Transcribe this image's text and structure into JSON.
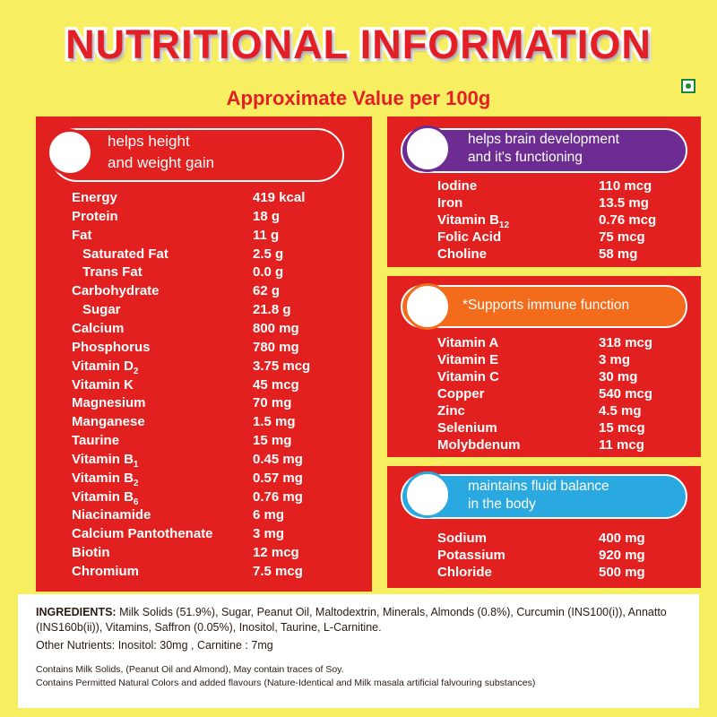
{
  "header": {
    "title": "NUTRITIONAL INFORMATION",
    "subtitle": "Approximate Value per 100g"
  },
  "panels": [
    {
      "heading": [
        "helps height",
        "and weight gain"
      ],
      "rows": [
        {
          "name": "Energy",
          "value": "419 kcal"
        },
        {
          "name": "Protein",
          "value": "18 g"
        },
        {
          "name": "Fat",
          "value": "11 g"
        },
        {
          "name": "Saturated Fat",
          "value": "2.5 g",
          "indent": true
        },
        {
          "name": "Trans Fat",
          "value": "0.0 g",
          "indent": true
        },
        {
          "name": "Carbohydrate",
          "value": "62 g"
        },
        {
          "name": "Sugar",
          "value": "21.8 g",
          "indent": true
        },
        {
          "name": "Calcium",
          "value": "800 mg"
        },
        {
          "name": "Phosphorus",
          "value": "780 mg"
        },
        {
          "name": "Vitamin D",
          "sub": "2",
          "value": "3.75 mcg"
        },
        {
          "name": "Vitamin K",
          "value": "45 mcg"
        },
        {
          "name": "Magnesium",
          "value": "70 mg"
        },
        {
          "name": "Manganese",
          "value": "1.5 mg"
        },
        {
          "name": "Taurine",
          "value": "15 mg"
        },
        {
          "name": "Vitamin B",
          "sub": "1",
          "value": "0.45 mg"
        },
        {
          "name": "Vitamin B",
          "sub": "2",
          "value": "0.57 mg"
        },
        {
          "name": "Vitamin B",
          "sub": "6",
          "value": "0.76 mg"
        },
        {
          "name": "Niacinamide",
          "value": "6 mg"
        },
        {
          "name": "Calcium Pantothenate",
          "value": "3 mg"
        },
        {
          "name": "Biotin",
          "value": "12 mcg"
        },
        {
          "name": "Chromium",
          "value": "7.5 mcg"
        }
      ]
    },
    {
      "heading": [
        "helps brain development",
        "and it's functioning"
      ],
      "rows": [
        {
          "name": "Iodine",
          "value": "110 mcg"
        },
        {
          "name": "Iron",
          "value": "13.5 mg"
        },
        {
          "name": "Vitamin B",
          "sub": "12",
          "value": "0.76 mcg"
        },
        {
          "name": "Folic Acid",
          "value": "75 mcg"
        },
        {
          "name": "Choline",
          "value": "58 mg"
        }
      ]
    },
    {
      "heading": [
        "*Supports immune function"
      ],
      "rows": [
        {
          "name": "Vitamin A",
          "value": "318 mcg"
        },
        {
          "name": "Vitamin E",
          "value": "3 mg"
        },
        {
          "name": "Vitamin C",
          "value": "30 mg"
        },
        {
          "name": "Copper",
          "value": "540 mcg"
        },
        {
          "name": "Zinc",
          "value": "4.5 mg"
        },
        {
          "name": "Selenium",
          "value": "15 mcg"
        },
        {
          "name": "Molybdenum",
          "value": "11 mcg"
        }
      ]
    },
    {
      "heading": [
        "maintains fluid balance",
        "in the body"
      ],
      "rows": [
        {
          "name": "Sodium",
          "value": "400 mg"
        },
        {
          "name": "Potassium",
          "value": "920 mg"
        },
        {
          "name": "Chloride",
          "value": "500 mg"
        }
      ]
    }
  ],
  "footer": {
    "ingredients_label": "INGREDIENTS:",
    "ingredients": "Milk Solids (51.9%), Sugar, Peanut Oil, Maltodextrin, Minerals, Almonds (0.8%), Curcumin (INS100(i)), Annatto (INS160b(ii)), Vitamins, Saffron (0.05%), Inositol, Taurine, L-Carnitine.",
    "other_nutrients": "Other Nutrients: Inositol: 30mg , Carnitine  : 7mg",
    "notes": [
      "Contains Milk Solids, (Peanut Oil and Almond), May contain traces of Soy.",
      "Contains Permitted Natural Colors and added flavours (Nature-Identical and Milk masala artificial falvouring substances)"
    ]
  }
}
